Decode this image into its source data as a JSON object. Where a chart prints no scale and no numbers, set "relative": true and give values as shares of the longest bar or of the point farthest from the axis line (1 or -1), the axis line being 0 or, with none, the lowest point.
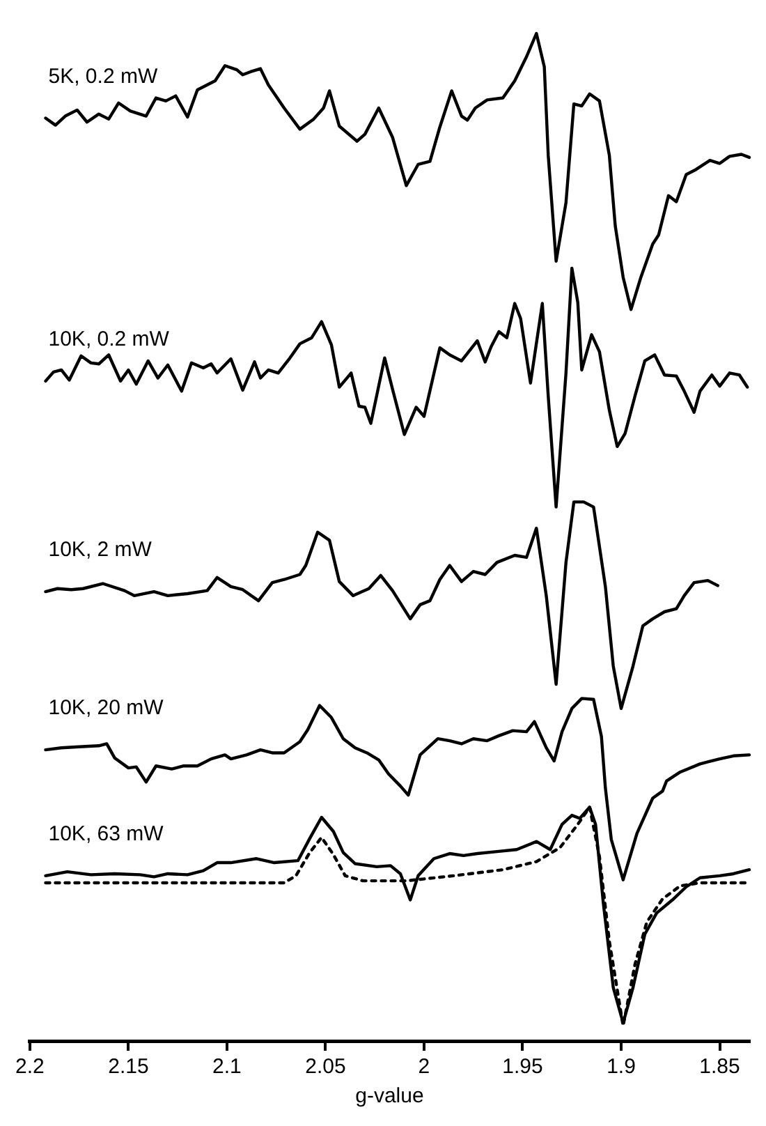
{
  "chart_data": {
    "type": "line",
    "relative": true,
    "xlabel": "g-value",
    "xlim": [
      2.2,
      1.835
    ],
    "xticks": [
      2.2,
      2.15,
      2.1,
      2.05,
      2,
      1.95,
      1.9,
      1.85
    ],
    "tick_labels": "x",
    "grid": false,
    "legend": false,
    "marker": "none",
    "series": [
      {
        "name": "5K, 0.2 mW",
        "color": "#000000",
        "x": [
          2.192,
          2.187,
          2.182,
          2.176,
          2.171,
          2.165,
          2.16,
          2.155,
          2.149,
          2.141,
          2.136,
          2.131,
          2.126,
          2.12,
          2.115,
          2.106,
          2.101,
          2.095,
          2.092,
          2.088,
          2.083,
          2.079,
          2.071,
          2.063,
          2.056,
          2.051,
          2.048,
          2.043,
          2.034,
          2.03,
          2.023,
          2.016,
          2.009,
          2.003,
          1.997,
          1.992,
          1.986,
          1.981,
          1.978,
          1.974,
          1.968,
          1.96,
          1.954,
          1.948,
          1.943,
          1.939,
          1.937,
          1.933,
          1.928,
          1.924,
          1.92,
          1.916,
          1.911,
          1.906,
          1.903,
          1.899,
          1.895,
          1.89,
          1.884,
          1.881,
          1.876,
          1.872,
          1.867,
          1.862,
          1.855,
          1.85,
          1.845,
          1.839,
          1.835
        ],
        "values": [
          0.916,
          0.909,
          0.918,
          0.924,
          0.912,
          0.92,
          0.915,
          0.931,
          0.923,
          0.918,
          0.936,
          0.933,
          0.938,
          0.917,
          0.944,
          0.953,
          0.968,
          0.964,
          0.959,
          0.962,
          0.965,
          0.949,
          0.926,
          0.905,
          0.915,
          0.926,
          0.943,
          0.908,
          0.893,
          0.9,
          0.926,
          0.897,
          0.849,
          0.87,
          0.873,
          0.907,
          0.943,
          0.918,
          0.914,
          0.926,
          0.934,
          0.936,
          0.953,
          0.977,
          1,
          0.967,
          0.879,
          0.774,
          0.832,
          0.93,
          0.928,
          0.94,
          0.933,
          0.879,
          0.809,
          0.758,
          0.726,
          0.758,
          0.791,
          0.8,
          0.839,
          0.833,
          0.86,
          0.865,
          0.874,
          0.871,
          0.878,
          0.88,
          0.877
        ]
      },
      {
        "name": "10K, 0.2 mW",
        "color": "#000000",
        "x": [
          2.192,
          2.188,
          2.184,
          2.18,
          2.174,
          2.169,
          2.165,
          2.16,
          2.154,
          2.15,
          2.146,
          2.14,
          2.135,
          2.13,
          2.123,
          2.118,
          2.112,
          2.108,
          2.105,
          2.098,
          2.092,
          2.086,
          2.083,
          2.079,
          2.074,
          2.068,
          2.063,
          2.057,
          2.052,
          2.047,
          2.043,
          2.037,
          2.033,
          2.03,
          2.027,
          2.02,
          2.016,
          2.01,
          2.004,
          2,
          1.992,
          1.987,
          1.981,
          1.973,
          1.969,
          1.966,
          1.962,
          1.958,
          1.954,
          1.951,
          1.946,
          1.94,
          1.937,
          1.933,
          1.928,
          1.925,
          1.922,
          1.92,
          1.915,
          1.911,
          1.906,
          1.902,
          1.898,
          1.893,
          1.888,
          1.883,
          1.878,
          1.872,
          1.868,
          1.863,
          1.86,
          1.854,
          1.85,
          1.845,
          1.84,
          1.836
        ],
        "values": [
          0.655,
          0.664,
          0.666,
          0.656,
          0.68,
          0.673,
          0.672,
          0.681,
          0.655,
          0.666,
          0.652,
          0.675,
          0.658,
          0.671,
          0.645,
          0.673,
          0.668,
          0.672,
          0.663,
          0.677,
          0.646,
          0.674,
          0.658,
          0.666,
          0.663,
          0.678,
          0.692,
          0.698,
          0.714,
          0.691,
          0.649,
          0.663,
          0.63,
          0.629,
          0.613,
          0.678,
          0.647,
          0.602,
          0.629,
          0.62,
          0.688,
          0.681,
          0.675,
          0.695,
          0.674,
          0.689,
          0.704,
          0.698,
          0.732,
          0.717,
          0.653,
          0.732,
          0.64,
          0.53,
          0.663,
          0.767,
          0.733,
          0.666,
          0.701,
          0.684,
          0.626,
          0.59,
          0.603,
          0.64,
          0.675,
          0.681,
          0.661,
          0.66,
          0.645,
          0.624,
          0.645,
          0.661,
          0.65,
          0.663,
          0.661,
          0.649
        ]
      },
      {
        "name": "10K, 2 mW",
        "color": "#000000",
        "x": [
          2.192,
          2.186,
          2.179,
          2.173,
          2.163,
          2.152,
          2.147,
          2.137,
          2.13,
          2.12,
          2.11,
          2.105,
          2.098,
          2.092,
          2.084,
          2.077,
          2.071,
          2.063,
          2.06,
          2.054,
          2.048,
          2.043,
          2.036,
          2.028,
          2.022,
          2.016,
          2.007,
          2.002,
          1.997,
          1.992,
          1.987,
          1.981,
          1.975,
          1.969,
          1.963,
          1.954,
          1.948,
          1.943,
          1.938,
          1.933,
          1.928,
          1.924,
          1.919,
          1.914,
          1.908,
          1.904,
          1.9,
          1.894,
          1.889,
          1.884,
          1.878,
          1.872,
          1.868,
          1.863,
          1.856,
          1.851
        ],
        "values": [
          0.446,
          0.449,
          0.448,
          0.449,
          0.454,
          0.447,
          0.442,
          0.446,
          0.442,
          0.444,
          0.447,
          0.46,
          0.451,
          0.448,
          0.437,
          0.455,
          0.458,
          0.463,
          0.472,
          0.505,
          0.497,
          0.456,
          0.442,
          0.449,
          0.462,
          0.447,
          0.419,
          0.433,
          0.437,
          0.458,
          0.472,
          0.456,
          0.466,
          0.463,
          0.475,
          0.482,
          0.48,
          0.509,
          0.442,
          0.354,
          0.475,
          0.535,
          0.535,
          0.53,
          0.451,
          0.372,
          0.33,
          0.372,
          0.412,
          0.419,
          0.426,
          0.429,
          0.442,
          0.455,
          0.457,
          0.452
        ]
      },
      {
        "name": "10K, 20 mW",
        "color": "#000000",
        "x": [
          2.192,
          2.184,
          2.175,
          2.165,
          2.161,
          2.157,
          2.15,
          2.146,
          2.141,
          2.136,
          2.128,
          2.122,
          2.115,
          2.108,
          2.101,
          2.098,
          2.09,
          2.083,
          2.077,
          2.071,
          2.063,
          2.059,
          2.053,
          2.047,
          2.041,
          2.035,
          2.029,
          2.023,
          2.018,
          2.012,
          2.008,
          2.002,
          1.993,
          1.987,
          1.981,
          1.975,
          1.968,
          1.962,
          1.955,
          1.948,
          1.944,
          1.938,
          1.934,
          1.93,
          1.925,
          1.92,
          1.914,
          1.91,
          1.908,
          1.905,
          1.899,
          1.892,
          1.884,
          1.879,
          1.877,
          1.87,
          1.86,
          1.85,
          1.843,
          1.835
        ],
        "values": [
          0.289,
          0.291,
          0.292,
          0.293,
          0.295,
          0.281,
          0.271,
          0.272,
          0.257,
          0.273,
          0.27,
          0.273,
          0.273,
          0.28,
          0.284,
          0.28,
          0.284,
          0.289,
          0.286,
          0.286,
          0.297,
          0.309,
          0.333,
          0.321,
          0.3,
          0.291,
          0.286,
          0.279,
          0.265,
          0.253,
          0.244,
          0.284,
          0.3,
          0.298,
          0.295,
          0.3,
          0.298,
          0.303,
          0.308,
          0.307,
          0.317,
          0.291,
          0.278,
          0.307,
          0.33,
          0.34,
          0.339,
          0.302,
          0.251,
          0.2,
          0.16,
          0.206,
          0.241,
          0.248,
          0.258,
          0.267,
          0.275,
          0.28,
          0.283,
          0.284
        ]
      },
      {
        "name": "10K, 63 mW",
        "color": "#000000",
        "x": [
          2.192,
          2.181,
          2.169,
          2.157,
          2.144,
          2.137,
          2.13,
          2.12,
          2.112,
          2.105,
          2.098,
          2.085,
          2.076,
          2.064,
          2.058,
          2.052,
          2.046,
          2.041,
          2.035,
          2.024,
          2.017,
          2.012,
          2.007,
          2.003,
          1.995,
          1.987,
          1.98,
          1.973,
          1.963,
          1.953,
          1.943,
          1.936,
          1.93,
          1.925,
          1.921,
          1.916,
          1.913,
          1.909,
          1.904,
          1.899,
          1.894,
          1.888,
          1.882,
          1.874,
          1.867,
          1.86,
          1.85,
          1.843,
          1.835
        ],
        "values": [
          0.164,
          0.168,
          0.165,
          0.166,
          0.165,
          0.163,
          0.166,
          0.165,
          0.169,
          0.177,
          0.177,
          0.181,
          0.177,
          0.179,
          0.201,
          0.222,
          0.208,
          0.187,
          0.176,
          0.173,
          0.174,
          0.166,
          0.14,
          0.164,
          0.181,
          0.186,
          0.184,
          0.186,
          0.188,
          0.19,
          0.198,
          0.19,
          0.215,
          0.224,
          0.221,
          0.232,
          0.215,
          0.136,
          0.053,
          0.018,
          0.053,
          0.106,
          0.127,
          0.14,
          0.153,
          0.162,
          0.164,
          0.166,
          0.17
        ]
      },
      {
        "color": "#000000",
        "line_style": "dotted",
        "x": [
          2.192,
          2.071,
          2.065,
          2.058,
          2.052,
          2.046,
          2.04,
          2.031,
          2.009,
          1.985,
          1.96,
          1.943,
          1.931,
          1.922,
          1.916,
          1.911,
          1.906,
          1.899,
          1.893,
          1.887,
          1.879,
          1.87,
          1.86,
          1.835
        ],
        "values": [
          0.157,
          0.157,
          0.164,
          0.187,
          0.202,
          0.185,
          0.164,
          0.159,
          0.159,
          0.164,
          0.17,
          0.178,
          0.192,
          0.215,
          0.232,
          0.183,
          0.099,
          0.015,
          0.076,
          0.118,
          0.141,
          0.154,
          0.157,
          0.157
        ]
      }
    ]
  }
}
